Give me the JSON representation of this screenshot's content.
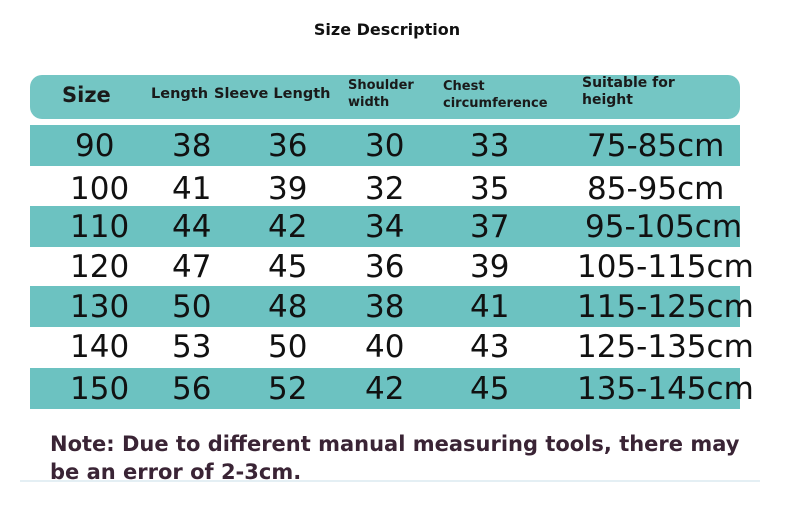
{
  "title": "Size Description",
  "table": {
    "header": [
      "Size",
      "Length",
      "Sleeve Length",
      "Shoulder width",
      "Chest circumference",
      "Suitable for height"
    ],
    "rows": [
      [
        "90",
        "38",
        "36",
        "30",
        "33",
        "75-85cm"
      ],
      [
        "100",
        "41",
        "39",
        "32",
        "35",
        "85-95cm"
      ],
      [
        "110",
        "44",
        "42",
        "34",
        "37",
        "95-105cm"
      ],
      [
        "120",
        "47",
        "45",
        "36",
        "39",
        "105-115cm"
      ],
      [
        "130",
        "50",
        "48",
        "38",
        "41",
        "115-125cm"
      ],
      [
        "140",
        "53",
        "50",
        "40",
        "43",
        "125-135cm"
      ],
      [
        "150",
        "56",
        "52",
        "42",
        "45",
        "135-145cm"
      ]
    ]
  },
  "note": "Note: Due to different manual measuring tools, there may be an error of 2-3cm."
}
